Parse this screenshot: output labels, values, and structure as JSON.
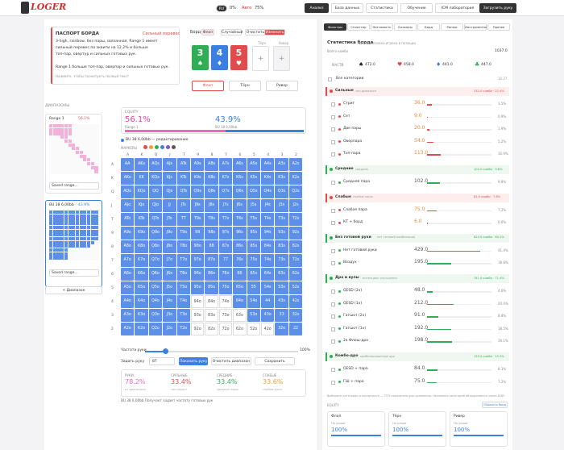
{
  "header": {
    "logo": "LOGER",
    "lang": "RU",
    "pct": "0%",
    "auto": "Авто",
    "zoom": "75%",
    "nav": [
      "Анализ",
      "База данных",
      "Статистика",
      "Обучение",
      "ICM лаборатория"
    ],
    "upload": "Загрузить руку"
  },
  "passport": {
    "title": "ПАСПОРТ БОРДА",
    "badge": "Сильный перевес",
    "lines": [
      "3-high, rainbow, без пары, связанная. Range 1 имеет",
      "сильный перевес по эквити на 12.2% и больше",
      "топ-пар, овертур и сильных готовых рук.",
      "Range 1 больше топ-пар, оверпар и сильных готовых рук."
    ],
    "hint": "Нажмите, чтобы посмотреть полный текст"
  },
  "board": {
    "label": "Борд",
    "buttons": [
      "Флоп",
      "Случайный",
      "Очистить",
      "Изменить"
    ],
    "cards": [
      {
        "rank": "3",
        "suit": "♠",
        "color": "#2fae55"
      },
      {
        "rank": "4",
        "suit": "♦",
        "color": "#3b7fe0"
      },
      {
        "rank": "5",
        "suit": "♥",
        "color": "#e24b4b"
      }
    ],
    "slots": [
      "Тёрн",
      "Ривер"
    ],
    "add": "+",
    "streets": [
      "Флоп",
      "Тёрн",
      "Ривер"
    ]
  },
  "ranges": {
    "title": "ДИАПАЗОНЫ",
    "items": [
      {
        "name": "Range 1",
        "info": "56.1%",
        "select": "Saved range..."
      },
      {
        "name": "BU 38 6,00bb",
        "info": "43.9%",
        "select": "Saved range..."
      }
    ],
    "add": "+ Диапазон"
  },
  "equity": {
    "title": "EQUITY",
    "a": {
      "value": 56.1,
      "label": "56.1%"
    },
    "a_name": "Range 1",
    "b": {
      "value": 43.9,
      "label": "43.9%"
    },
    "b_name": "BU 38 6,00bb"
  },
  "matrix": {
    "legend": "BU 38 6,00bb — редактирование",
    "markers": "МАРКЕРЫ",
    "cols": [
      "A",
      "K",
      "Q",
      "J",
      "T",
      "9",
      "8",
      "7",
      "6",
      "5",
      "4",
      "3",
      "2"
    ],
    "rows": [
      [
        "AA",
        "AKs",
        "AQs",
        "AJs",
        "ATs",
        "A9s",
        "A8s",
        "A7s",
        "A6s",
        "A5s",
        "A4s",
        "A3s",
        "A2s"
      ],
      [
        "AKo",
        "KK",
        "KQs",
        "KJs",
        "KTs",
        "K9s",
        "K8s",
        "K7s",
        "K6s",
        "K5s",
        "K4s",
        "K3s",
        "K2s"
      ],
      [
        "AQo",
        "KQo",
        "QQ",
        "QJs",
        "QTs",
        "Q9s",
        "Q8s",
        "Q7s",
        "Q6s",
        "Q5s",
        "Q4s",
        "Q3s",
        "Q2s"
      ],
      [
        "AJo",
        "KJo",
        "QJo",
        "JJ",
        "JTs",
        "J9s",
        "J8s",
        "J7s",
        "J6s",
        "J5s",
        "J4s",
        "J3s",
        "J2s"
      ],
      [
        "ATo",
        "KTo",
        "QTo",
        "JTo",
        "TT",
        "T9s",
        "T8s",
        "T7s",
        "T6s",
        "T5s",
        "T4s",
        "T3s",
        "T2s"
      ],
      [
        "A9o",
        "K9o",
        "Q9o",
        "J9o",
        "T9o",
        "99",
        "98s",
        "97s",
        "96s",
        "95s",
        "94s",
        "93s",
        "92s"
      ],
      [
        "A8o",
        "K8o",
        "Q8o",
        "J8o",
        "T8o",
        "98o",
        "88",
        "87s",
        "86s",
        "85s",
        "84s",
        "83s",
        "82s"
      ],
      [
        "A7o",
        "K7o",
        "Q7o",
        "J7o",
        "T7o",
        "97o",
        "87o",
        "77",
        "76s",
        "75s",
        "74s",
        "73s",
        "72s"
      ],
      [
        "A6o",
        "K6o",
        "Q6o",
        "J6o",
        "T6o",
        "96o",
        "86o",
        "76o",
        "66",
        "65s",
        "64s",
        "63s",
        "62s"
      ],
      [
        "A5o",
        "K5o",
        "Q5o",
        "J5o",
        "T5o",
        "95o",
        "85o",
        "75o",
        "65o",
        "55",
        "54s",
        "53s",
        "52s"
      ],
      [
        "A4o",
        "K4o",
        "Q4o",
        "J4o",
        "T4o",
        "94o",
        "84o",
        "74o",
        "64o",
        "54o",
        "44",
        "43s",
        "42s"
      ],
      [
        "A3o",
        "K3o",
        "Q3o",
        "J3o",
        "T3o",
        "93o",
        "83o",
        "73o",
        "63o",
        "53o",
        "43o",
        "33",
        "32s"
      ],
      [
        "A2o",
        "K2o",
        "Q2o",
        "J2o",
        "T2o",
        "92o",
        "82o",
        "72o",
        "62o",
        "52o",
        "42o",
        "32o",
        "22"
      ]
    ],
    "on": [
      "1111111111111",
      "1111111111111",
      "1111111111111",
      "1111111111111",
      "1111111111111",
      "1111111111111",
      "1111111111111",
      "1111111111111",
      "1111111111111",
      "1111111111111",
      "1111100011111",
      "1111100001111",
      "1111100000011"
    ]
  },
  "controls": {
    "freq": "Частота руки",
    "freq_end": "100%",
    "set": "Задать руку",
    "input": "87",
    "buttons": [
      "Показать руку",
      "Очистить диапазон",
      "Сохранить"
    ]
  },
  "summary": [
    {
      "label": "РУКИ",
      "value": "78.2%",
      "sub": "от диапазона"
    },
    {
      "label": "СИЛЬНЫЕ",
      "value": "33.4%",
      "sub": "топ-пары+"
    },
    {
      "label": "СРЕДНИЕ",
      "value": "33.4%",
      "sub": "средние пары"
    },
    {
      "label": "СЛАБЫЕ",
      "value": "33.6%",
      "sub": "слабые руки"
    }
  ],
  "footnote": "BU 38 6,00bb   Получает задает частоту готовых рук",
  "stats": {
    "tabs": [
      "Фильтры",
      "Сплиттер",
      "Натсовость",
      "Блокеры",
      "Борд",
      "Ранжи",
      "Инструменты",
      "Прочее"
    ],
    "title": "Статистика борда",
    "subtitle": "для диапазона игрока в позиции",
    "total_label": "Всего комбо",
    "total": "1037.0",
    "suits_label": "МАСТИ",
    "suits": [
      {
        "s": "♠",
        "v": "472.0",
        "c": "#222"
      },
      {
        "s": "♥",
        "v": "458.0",
        "c": "#e24b4b"
      },
      {
        "s": "♦",
        "v": "441.0",
        "c": "#3b7fe0"
      },
      {
        "s": "♣",
        "v": "447.0",
        "c": "#2fae55"
      }
    ],
    "all": "Все категории",
    "all_v": "10.27",
    "groups": [
      {
        "name": "Сильные",
        "sub": "топ-диапазон",
        "info": "232.0 комбо · 22.4%",
        "color": "#e24b4b",
        "items": [
          {
            "n": "Стрит",
            "v": "36.0",
            "p": {
              "value": 3.5,
              "label": "3.5%"
            }
          },
          {
            "n": "Сет",
            "v": "9.0",
            "p": {
              "value": 0.9,
              "label": "0.9%"
            }
          },
          {
            "n": "Две пары",
            "v": "20.0",
            "p": {
              "value": 1.9,
              "label": "1.9%"
            }
          },
          {
            "n": "Оверпара",
            "v": "54.0",
            "p": {
              "value": 5.2,
              "label": "5.2%"
            }
          },
          {
            "n": "Топ-пара",
            "v": "113.0",
            "p": {
              "value": 10.9,
              "label": "10.9%"
            }
          }
        ]
      },
      {
        "name": "Средние",
        "sub": "средние",
        "info": "102.0 комбо · 9.8%",
        "color": "#2fae55",
        "items": [
          {
            "n": "Средняя пара",
            "v": "102.0",
            "p": {
              "value": 9.8,
              "label": "9.8%"
            }
          }
        ]
      },
      {
        "name": "Слабые",
        "sub": "слабые пары",
        "info": "81.0 комбо · 7.8%",
        "color": "#e24b4b",
        "items": [
          {
            "n": "Слабая пара",
            "v": "75.0",
            "p": {
              "value": 7.2,
              "label": "7.2%"
            }
          },
          {
            "n": "КТ + борд",
            "v": "6.0",
            "p": {
              "value": 0.6,
              "label": "0.6%"
            }
          }
        ]
      },
      {
        "name": "Без готовой руки",
        "sub": "нет готовой комбинации",
        "info": "624.0 комбо · 60.2%",
        "color": "#2fae55",
        "items": [
          {
            "n": "Нет готовой руки",
            "v": "429.0",
            "p": {
              "value": 41.4,
              "label": "41.4%"
            }
          },
          {
            "n": "Воздух",
            "v": "195.0",
            "p": {
              "value": 18.8,
              "label": "18.8%"
            }
          }
        ]
      },
      {
        "name": "Дро и вулы",
        "sub": "потенциал улучшения",
        "info": "741.0 комбо · 71.4%",
        "color": "#2fae55",
        "items": [
          {
            "n": "OESD (2x)",
            "v": "48.0",
            "p": {
              "value": 4.6,
              "label": "4.6%"
            }
          },
          {
            "n": "OESD (1x)",
            "v": "212.0",
            "p": {
              "value": 20.4,
              "label": "20.4%"
            }
          },
          {
            "n": "Гатшот (2x)",
            "v": "91.0",
            "p": {
              "value": 8.8,
              "label": "8.8%"
            }
          },
          {
            "n": "Гатшот (1x)",
            "v": "192.0",
            "p": {
              "value": 18.5,
              "label": "18.5%"
            }
          },
          {
            "n": "2к Флеш-дро",
            "v": "198.0",
            "p": {
              "value": 19.1,
              "label": "19.1%"
            }
          }
        ]
      },
      {
        "name": "Комбо-дро",
        "sub": "комбинированные дро",
        "info": "159.0 комбо · 15.3%",
        "color": "#2fae55",
        "items": [
          {
            "n": "OESD + пара",
            "v": "84.0",
            "p": {
              "value": 8.1,
              "label": "8.1%"
            }
          },
          {
            "n": "ГШ + пара",
            "v": "75.0",
            "p": {
              "value": 7.2,
              "label": "7.2%"
            }
          }
        ]
      }
    ],
    "note": "Выберите категории и посмотрите — ТОП-показатели рук сравнения. Несколько категорий объединяются через ИЛИ.",
    "eq_title": "EQUITY",
    "eq_btn": "Сбросить борд",
    "streets": [
      {
        "n": "Флоп",
        "l": "На улице",
        "v": "100%"
      },
      {
        "n": "Тёрн",
        "l": "На улице",
        "v": "100%"
      },
      {
        "n": "Ривер",
        "l": "На улице",
        "v": "100%"
      }
    ]
  }
}
